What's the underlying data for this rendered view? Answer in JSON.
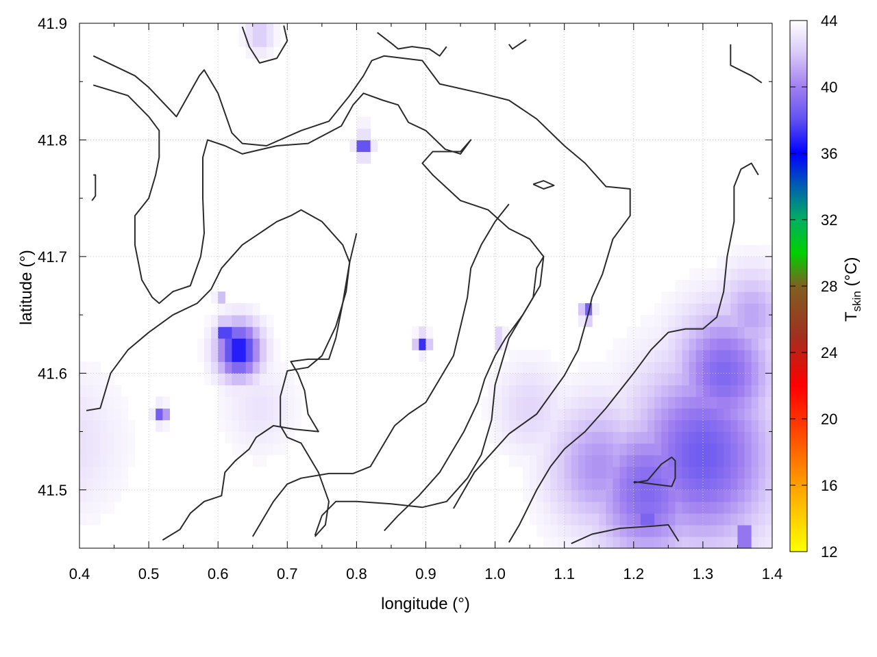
{
  "chart_data": {
    "type": "heatmap",
    "xlabel": "longitude (°)",
    "ylabel": "latitude (°)",
    "xlim": [
      0.4,
      1.4
    ],
    "ylim": [
      41.45,
      41.9
    ],
    "x_ticks": [
      0.4,
      0.5,
      0.6,
      0.7,
      0.8,
      0.9,
      1.0,
      1.1,
      1.2,
      1.3,
      1.4
    ],
    "x_tick_labels": [
      "0.4",
      "0.5",
      "0.6",
      "0.7",
      "0.8",
      "0.9",
      "1.0",
      "1.1",
      "1.2",
      "1.3",
      "1.4"
    ],
    "y_ticks": [
      41.5,
      41.6,
      41.7,
      41.8,
      41.9
    ],
    "y_tick_labels": [
      "41.5",
      "41.6",
      "41.7",
      "41.8",
      "41.9"
    ],
    "grid": true,
    "colorbar": {
      "label": "T",
      "label_subscript": "skin",
      "label_unit": " (°C)",
      "range": [
        12,
        44
      ],
      "ticks": [
        12,
        16,
        20,
        24,
        28,
        32,
        36,
        40,
        44
      ],
      "tick_labels": [
        "12",
        "16",
        "20",
        "24",
        "28",
        "32",
        "36",
        "40",
        "44"
      ],
      "stops": [
        {
          "value": 12,
          "color": "#ffff00"
        },
        {
          "value": 16,
          "color": "#ffa000"
        },
        {
          "value": 20,
          "color": "#ff3000"
        },
        {
          "value": 22,
          "color": "#ff0000"
        },
        {
          "value": 25,
          "color": "#a03020"
        },
        {
          "value": 28,
          "color": "#806020"
        },
        {
          "value": 30,
          "color": "#00d000"
        },
        {
          "value": 32,
          "color": "#00b060"
        },
        {
          "value": 34,
          "color": "#0060b0"
        },
        {
          "value": 36,
          "color": "#0000ff"
        },
        {
          "value": 38,
          "color": "#6050f0"
        },
        {
          "value": 40,
          "color": "#a080f0"
        },
        {
          "value": 42,
          "color": "#d8c8f8"
        },
        {
          "value": 44,
          "color": "#ffffff"
        }
      ]
    },
    "field_background_value": 44,
    "warm_regions": [
      {
        "lon": 1.3,
        "lat": 41.53,
        "radius": 0.1,
        "value": 38.5
      },
      {
        "lon": 1.22,
        "lat": 41.5,
        "radius": 0.08,
        "value": 39.0
      },
      {
        "lon": 1.33,
        "lat": 41.6,
        "radius": 0.07,
        "value": 39.0
      },
      {
        "lon": 1.15,
        "lat": 41.52,
        "radius": 0.07,
        "value": 40.5
      },
      {
        "lon": 1.37,
        "lat": 41.65,
        "radius": 0.05,
        "value": 41.0
      },
      {
        "lon": 1.05,
        "lat": 41.57,
        "radius": 0.05,
        "value": 42.5
      },
      {
        "lon": 0.38,
        "lat": 41.54,
        "radius": 0.08,
        "value": 42.8
      },
      {
        "lon": 0.66,
        "lat": 41.57,
        "radius": 0.05,
        "value": 43.0
      },
      {
        "lon": 0.66,
        "lat": 41.89,
        "radius": 0.02,
        "value": 42.0
      }
    ],
    "hot_spots": [
      {
        "lon": 0.63,
        "lat": 41.62,
        "radius": 0.03,
        "value": 36.2
      },
      {
        "lon": 0.61,
        "lat": 41.635,
        "radius": 0.012,
        "value": 36.5
      },
      {
        "lon": 0.81,
        "lat": 41.795,
        "radius": 0.01,
        "value": 36.5
      },
      {
        "lon": 0.81,
        "lat": 41.81,
        "radius": 0.005,
        "value": 37.5
      },
      {
        "lon": 0.895,
        "lat": 41.626,
        "radius": 0.009,
        "value": 37.0
      },
      {
        "lon": 1.008,
        "lat": 41.63,
        "radius": 0.006,
        "value": 37.5
      },
      {
        "lon": 1.133,
        "lat": 41.652,
        "radius": 0.008,
        "value": 37.0
      },
      {
        "lon": 0.518,
        "lat": 41.565,
        "radius": 0.009,
        "value": 38.0
      },
      {
        "lon": 0.602,
        "lat": 41.668,
        "radius": 0.005,
        "value": 38.0
      },
      {
        "lon": 1.36,
        "lat": 41.46,
        "radius": 0.012,
        "value": 37.0
      },
      {
        "lon": 1.22,
        "lat": 41.475,
        "radius": 0.02,
        "value": 38.5
      }
    ],
    "contours": [
      [
        [
          0.42,
          41.872
        ],
        [
          0.48,
          41.855
        ],
        [
          0.5,
          41.845
        ],
        [
          0.54,
          41.82
        ],
        [
          0.573,
          41.855
        ],
        [
          0.58,
          41.86
        ],
        [
          0.6,
          41.84
        ],
        [
          0.62,
          41.806
        ],
        [
          0.635,
          41.797
        ],
        [
          0.67,
          41.795
        ],
        [
          0.72,
          41.808
        ],
        [
          0.76,
          41.816
        ],
        [
          0.79,
          41.838
        ],
        [
          0.81,
          41.855
        ],
        [
          0.822,
          41.868
        ],
        [
          0.84,
          41.872
        ],
        [
          0.895,
          41.868
        ],
        [
          0.92,
          41.848
        ],
        [
          0.98,
          41.84
        ],
        [
          1.02,
          41.834
        ],
        [
          1.06,
          41.818
        ],
        [
          1.1,
          41.795
        ],
        [
          1.13,
          41.78
        ],
        [
          1.16,
          41.76
        ],
        [
          1.195,
          41.758
        ],
        [
          1.195,
          41.735
        ],
        [
          1.17,
          41.715
        ],
        [
          1.155,
          41.685
        ],
        [
          1.14,
          41.665
        ],
        [
          1.135,
          41.652
        ],
        [
          1.12,
          41.62
        ],
        [
          1.1,
          41.598
        ],
        [
          1.06,
          41.565
        ],
        [
          1.02,
          41.548
        ],
        [
          0.97,
          41.515
        ],
        [
          0.94,
          41.484
        ]
      ],
      [
        [
          0.42,
          41.847
        ],
        [
          0.47,
          41.838
        ],
        [
          0.5,
          41.82
        ],
        [
          0.515,
          41.808
        ],
        [
          0.515,
          41.785
        ],
        [
          0.51,
          41.77
        ],
        [
          0.5,
          41.75
        ],
        [
          0.48,
          41.735
        ],
        [
          0.48,
          41.71
        ],
        [
          0.49,
          41.68
        ],
        [
          0.505,
          41.665
        ],
        [
          0.515,
          41.66
        ],
        [
          0.535,
          41.67
        ],
        [
          0.56,
          41.675
        ],
        [
          0.575,
          41.7
        ],
        [
          0.58,
          41.72
        ],
        [
          0.578,
          41.75
        ],
        [
          0.578,
          41.785
        ],
        [
          0.585,
          41.8
        ],
        [
          0.61,
          41.795
        ],
        [
          0.635,
          41.788
        ],
        [
          0.685,
          41.795
        ],
        [
          0.73,
          41.797
        ],
        [
          0.778,
          41.812
        ],
        [
          0.795,
          41.83
        ],
        [
          0.81,
          41.84
        ],
        [
          0.838,
          41.834
        ],
        [
          0.86,
          41.83
        ],
        [
          0.875,
          41.815
        ],
        [
          0.9,
          41.808
        ],
        [
          0.928,
          41.792
        ],
        [
          0.95,
          41.788
        ],
        [
          0.965,
          41.8
        ],
        [
          0.95,
          41.79
        ],
        [
          0.925,
          41.79
        ],
        [
          0.91,
          41.79
        ],
        [
          0.895,
          41.78
        ],
        [
          0.91,
          41.77
        ],
        [
          0.95,
          41.748
        ],
        [
          0.99,
          41.74
        ],
        [
          1.02,
          41.724
        ],
        [
          1.05,
          41.715
        ],
        [
          1.07,
          41.7
        ],
        [
          1.065,
          41.675
        ],
        [
          1.04,
          41.65
        ],
        [
          1.015,
          41.63
        ],
        [
          1.0,
          41.615
        ],
        [
          0.985,
          41.595
        ],
        [
          0.975,
          41.575
        ],
        [
          0.955,
          41.55
        ],
        [
          0.935,
          41.53
        ],
        [
          0.92,
          41.515
        ],
        [
          0.89,
          41.495
        ],
        [
          0.86,
          41.478
        ],
        [
          0.84,
          41.465
        ]
      ],
      [
        [
          0.41,
          41.568
        ],
        [
          0.43,
          41.57
        ],
        [
          0.445,
          41.6
        ],
        [
          0.47,
          41.62
        ],
        [
          0.5,
          41.635
        ],
        [
          0.535,
          41.65
        ],
        [
          0.57,
          41.66
        ],
        [
          0.59,
          41.672
        ],
        [
          0.605,
          41.69
        ],
        [
          0.62,
          41.7
        ],
        [
          0.635,
          41.71
        ],
        [
          0.66,
          41.72
        ],
        [
          0.685,
          41.73
        ],
        [
          0.705,
          41.735
        ],
        [
          0.72,
          41.74
        ],
        [
          0.75,
          41.73
        ],
        [
          0.78,
          41.71
        ],
        [
          0.79,
          41.695
        ],
        [
          0.785,
          41.67
        ],
        [
          0.77,
          41.64
        ],
        [
          0.75,
          41.615
        ],
        [
          0.73,
          41.605
        ],
        [
          0.7,
          41.602
        ],
        [
          0.69,
          41.58
        ],
        [
          0.69,
          41.555
        ],
        [
          0.7,
          41.545
        ],
        [
          0.72,
          41.54
        ],
        [
          0.745,
          41.515
        ],
        [
          0.76,
          41.49
        ],
        [
          0.755,
          41.47
        ],
        [
          0.74,
          41.46
        ]
      ],
      [
        [
          0.52,
          41.457
        ],
        [
          0.545,
          41.466
        ],
        [
          0.56,
          41.48
        ],
        [
          0.58,
          41.49
        ],
        [
          0.605,
          41.495
        ],
        [
          0.61,
          41.515
        ],
        [
          0.625,
          41.525
        ],
        [
          0.645,
          41.535
        ],
        [
          0.655,
          41.545
        ],
        [
          0.68,
          41.555
        ],
        [
          0.71,
          41.552
        ],
        [
          0.745,
          41.55
        ],
        [
          0.73,
          41.565
        ],
        [
          0.725,
          41.585
        ],
        [
          0.715,
          41.6
        ],
        [
          0.705,
          41.61
        ],
        [
          0.73,
          41.612
        ],
        [
          0.76,
          41.612
        ],
        [
          0.77,
          41.63
        ],
        [
          0.78,
          41.66
        ],
        [
          0.79,
          41.695
        ],
        [
          0.8,
          41.72
        ]
      ],
      [
        [
          0.65,
          41.46
        ],
        [
          0.665,
          41.475
        ],
        [
          0.68,
          41.49
        ],
        [
          0.7,
          41.505
        ],
        [
          0.72,
          41.51
        ],
        [
          0.76,
          41.514
        ],
        [
          0.795,
          41.514
        ],
        [
          0.82,
          41.52
        ],
        [
          0.84,
          41.54
        ],
        [
          0.855,
          41.555
        ],
        [
          0.875,
          41.565
        ],
        [
          0.9,
          41.575
        ],
        [
          0.92,
          41.595
        ],
        [
          0.94,
          41.615
        ],
        [
          0.95,
          41.64
        ],
        [
          0.96,
          41.665
        ],
        [
          0.965,
          41.69
        ],
        [
          0.98,
          41.71
        ],
        [
          1.0,
          41.73
        ],
        [
          1.02,
          41.745
        ]
      ],
      [
        [
          0.74,
          41.461
        ],
        [
          0.75,
          41.478
        ],
        [
          0.77,
          41.49
        ],
        [
          0.8,
          41.49
        ],
        [
          0.85,
          41.488
        ],
        [
          0.895,
          41.485
        ],
        [
          0.93,
          41.49
        ],
        [
          0.96,
          41.51
        ],
        [
          0.98,
          41.53
        ],
        [
          0.995,
          41.56
        ],
        [
          1.0,
          41.59
        ],
        [
          1.01,
          41.61
        ],
        [
          1.02,
          41.63
        ],
        [
          1.04,
          41.65
        ],
        [
          1.055,
          41.665
        ],
        [
          1.06,
          41.69
        ],
        [
          1.07,
          41.7
        ],
        [
          1.06,
          41.69
        ]
      ],
      [
        [
          1.02,
          41.455
        ],
        [
          1.035,
          41.47
        ],
        [
          1.06,
          41.5
        ],
        [
          1.08,
          41.52
        ],
        [
          1.1,
          41.535
        ],
        [
          1.13,
          41.55
        ],
        [
          1.16,
          41.57
        ],
        [
          1.18,
          41.585
        ],
        [
          1.2,
          41.6
        ],
        [
          1.225,
          41.62
        ],
        [
          1.25,
          41.635
        ],
        [
          1.275,
          41.638
        ],
        [
          1.3,
          41.638
        ],
        [
          1.32,
          41.648
        ],
        [
          1.33,
          41.67
        ],
        [
          1.335,
          41.7
        ],
        [
          1.345,
          41.73
        ],
        [
          1.345,
          41.76
        ],
        [
          1.355,
          41.775
        ],
        [
          1.37,
          41.78
        ],
        [
          1.38,
          41.77
        ]
      ],
      [
        [
          1.11,
          41.454
        ],
        [
          1.14,
          41.462
        ],
        [
          1.18,
          41.467
        ],
        [
          1.23,
          41.469
        ],
        [
          1.25,
          41.47
        ],
        [
          1.265,
          41.456
        ]
      ],
      [
        [
          1.2,
          41.506
        ],
        [
          1.22,
          41.508
        ],
        [
          1.24,
          41.522
        ],
        [
          1.255,
          41.528
        ],
        [
          1.26,
          41.525
        ],
        [
          1.26,
          41.51
        ],
        [
          1.255,
          41.503
        ],
        [
          1.2,
          41.507
        ]
      ],
      [
        [
          1.055,
          41.762
        ],
        [
          1.07,
          41.765
        ],
        [
          1.085,
          41.761
        ],
        [
          1.07,
          41.758
        ],
        [
          1.055,
          41.762
        ]
      ],
      [
        [
          0.83,
          41.892
        ],
        [
          0.852,
          41.882
        ],
        [
          0.86,
          41.878
        ],
        [
          0.88,
          41.88
        ],
        [
          0.905,
          41.878
        ],
        [
          0.92,
          41.872
        ],
        [
          0.93,
          41.88
        ]
      ],
      [
        [
          1.02,
          41.882
        ],
        [
          1.025,
          41.878
        ],
        [
          1.045,
          41.886
        ]
      ],
      [
        [
          1.34,
          41.882
        ],
        [
          1.34,
          41.864
        ],
        [
          1.37,
          41.855
        ],
        [
          1.385,
          41.849
        ]
      ],
      [
        [
          0.42,
          41.77
        ],
        [
          0.423,
          41.77
        ],
        [
          0.423,
          41.752
        ],
        [
          0.418,
          41.748
        ]
      ],
      [
        [
          0.635,
          41.897
        ],
        [
          0.645,
          41.88
        ],
        [
          0.66,
          41.866
        ],
        [
          0.685,
          41.87
        ],
        [
          0.7,
          41.885
        ],
        [
          0.695,
          41.898
        ]
      ]
    ]
  }
}
